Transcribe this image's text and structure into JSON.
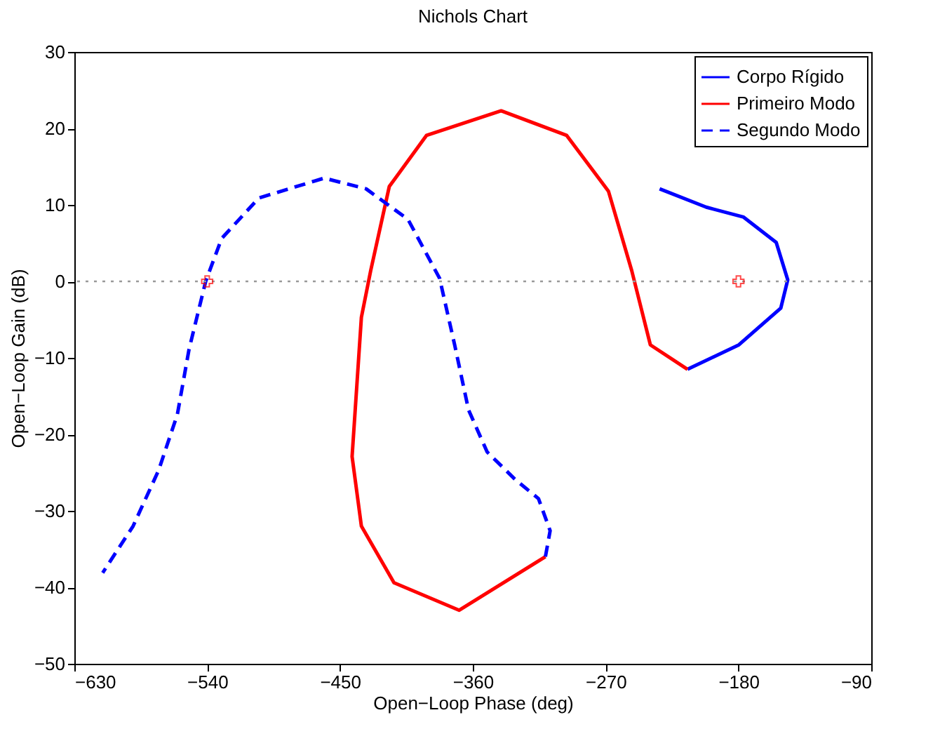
{
  "chart_data": {
    "type": "line",
    "title": "Nichols Chart",
    "xlabel": "Open−Loop Phase (deg)",
    "ylabel": "Open−Loop Gain (dB)",
    "xlim": [
      -630,
      -90
    ],
    "ylim": [
      -50,
      30
    ],
    "xticks": [
      {
        "value": -630,
        "label": "−630"
      },
      {
        "value": -540,
        "label": "−540"
      },
      {
        "value": -450,
        "label": "−450"
      },
      {
        "value": -360,
        "label": "−360"
      },
      {
        "value": -270,
        "label": "−270"
      },
      {
        "value": -180,
        "label": "−180"
      },
      {
        "value": -90,
        "label": "−90"
      }
    ],
    "yticks": [
      {
        "value": -50,
        "label": "−50"
      },
      {
        "value": -40,
        "label": "−40"
      },
      {
        "value": -30,
        "label": "−30"
      },
      {
        "value": -20,
        "label": "−20"
      },
      {
        "value": -10,
        "label": "−10"
      },
      0,
      10,
      20,
      30
    ],
    "grid": false,
    "legend": "top right",
    "ref_lines": [
      {
        "axis": "y",
        "value": 0,
        "color": "#999999",
        "line_style": "dotted"
      }
    ],
    "series": [
      {
        "name": "Corpo Rígido",
        "color": "#0000ff",
        "line_style": "solid",
        "x": [
          -233.4,
          -201.8,
          -176.5,
          -154.4,
          -146.6,
          -151.3,
          -179.7,
          -214.5
        ],
        "values": [
          12.1,
          9.7,
          8.4,
          5.1,
          0.2,
          -3.5,
          -8.3,
          -11.5
        ]
      },
      {
        "name": "Primeiro Modo",
        "color": "#ff0000",
        "line_style": "solid",
        "x": [
          -214.5,
          -239.7,
          -252.3,
          -268.1,
          -296.5,
          -340.8,
          -391.3,
          -416.6,
          -429.2,
          -435.5,
          -441.8,
          -435.5,
          -413.4,
          -369.2,
          -310.8
        ],
        "values": [
          -11.5,
          -8.3,
          1.4,
          11.8,
          19.1,
          22.3,
          19.1,
          12.4,
          1.4,
          -4.7,
          -22.9,
          -32.0,
          -39.4,
          -43.0,
          -36.0
        ]
      },
      {
        "name": "Segundo Modo",
        "color": "#0000ff",
        "line_style": "dashed",
        "x": [
          -310.8,
          -307.6,
          -315.5,
          -331.3,
          -350.3,
          -362.9,
          -372.3,
          -382.5,
          -403.9,
          -432.3,
          -460.7,
          -505,
          -530.2,
          -541,
          -552.3,
          -560.2,
          -572.9,
          -590.2,
          -610.8
        ],
        "values": [
          -36.0,
          -32.6,
          -28.4,
          -25.9,
          -22.3,
          -16.8,
          -8.3,
          0.4,
          8.1,
          12.1,
          13.5,
          10.9,
          5.6,
          0.0,
          -8.9,
          -17.4,
          -24.7,
          -32.0,
          -38.1
        ]
      },
      {
        "type": "scatter",
        "color": "#ff0000",
        "marker": "cross",
        "x": [
          -540,
          -180
        ],
        "values": [
          0,
          0
        ]
      }
    ]
  }
}
